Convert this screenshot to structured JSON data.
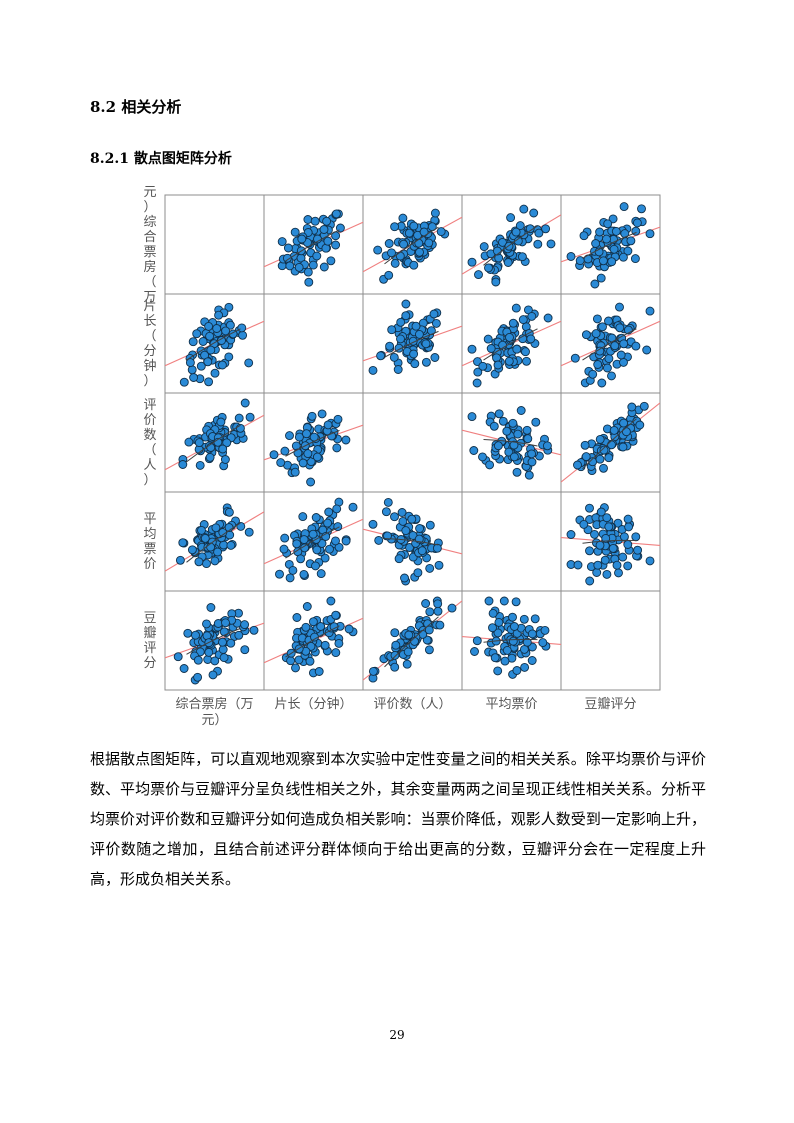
{
  "heading": "8.2 相关分析",
  "subheading": "8.2.1 散点图矩阵分析",
  "paragraph": "根据散点图矩阵，可以直观地观察到本次实验中定性变量之间的相关关系。除平均票价与评价数、平均票价与豆瓣评分呈负线性相关之外，其余变量两两之间呈现正线性相关关系。分析平均票价对评价数和豆瓣评分如何造成负相关影响：当票价降低，观影人数受到一定影响上升，评价数随之增加，且结合前述评分群体倾向于给出更高的分数，豆瓣评分会在一定程度上升高，形成负相关关系。",
  "page_number": "29",
  "chart_data": {
    "type": "scatter",
    "variables": [
      "综合票房（万元）",
      "片长（分钟）",
      "评价数（人）",
      "平均票价",
      "豆瓣评分"
    ],
    "row_labels": [
      [
        "元）",
        "综合票房",
        "（万"
      ],
      [
        "片长",
        "（分钟）"
      ],
      [
        "评价",
        "数",
        "（人）"
      ],
      [
        "平均",
        "票价"
      ],
      [
        "豆瓣",
        "评分"
      ]
    ],
    "column_labels": [
      [
        "综合票房（万",
        "元）"
      ],
      [
        "片长（分钟）"
      ],
      [
        "评价数（人）"
      ],
      [
        "平均票价"
      ],
      [
        "豆瓣评分"
      ]
    ],
    "marker_color": "#2a8ad6",
    "fit_line_color": "#f08080",
    "loess_color": "#404040",
    "grid": false,
    "correlations": {
      "0-1": 0.45,
      "0-2": 0.55,
      "0-3": 0.6,
      "0-4": 0.35,
      "1-2": 0.35,
      "1-3": 0.45,
      "1-4": 0.45,
      "2-3": -0.25,
      "2-4": 0.8,
      "3-4": -0.08
    },
    "points_per_cell": 70
  }
}
